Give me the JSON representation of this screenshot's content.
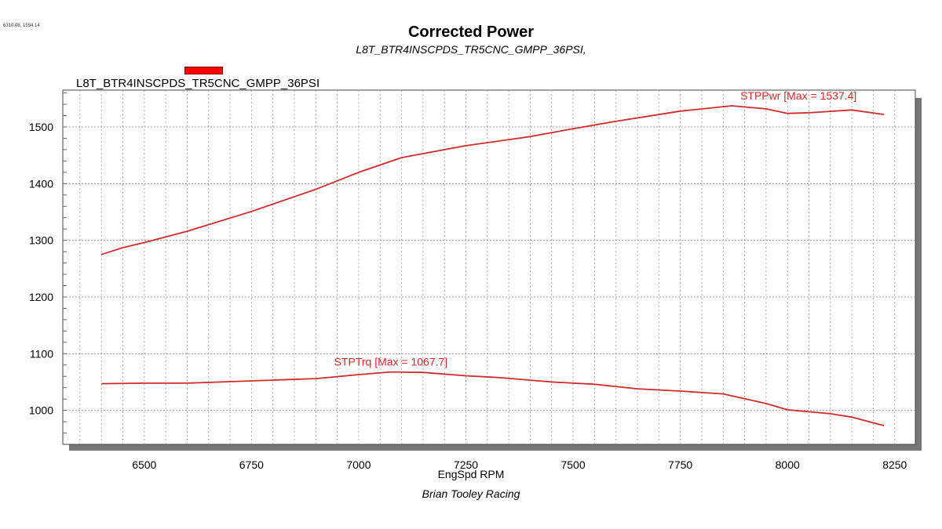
{
  "cursor_readout": "6310.08, 1554.14",
  "chart_data": {
    "type": "line",
    "title": "Corrected Power",
    "subtitle": "L8T_BTR4INSCPDS_TR5CNC_GMPP_36PSI,",
    "legend": [
      {
        "name": "L8T_BTR4INSCPDS_TR5CNC_GMPP_36PSI",
        "color": "#ff0000"
      }
    ],
    "legend_placement": "top-left",
    "xlabel": "EngSpd RPM",
    "ylabel": "",
    "footer": "Brian Tooley Racing",
    "xlim": [
      6310,
      8298
    ],
    "ylim": [
      940,
      1565
    ],
    "xticks": [
      6500,
      6750,
      7000,
      7250,
      7500,
      7750,
      8000,
      8250
    ],
    "yticks": [
      1000,
      1100,
      1200,
      1300,
      1400,
      1500
    ],
    "grid": true,
    "line_color": "#d42a2a",
    "series": [
      {
        "name": "STPPwr",
        "annotation": "STPPwr [Max = 1537.4]",
        "x": [
          6400,
          6450,
          6500,
          6600,
          6750,
          6900,
          7000,
          7100,
          7250,
          7400,
          7500,
          7600,
          7750,
          7870,
          7950,
          8000,
          8050,
          8150,
          8225
        ],
        "y": [
          1275,
          1287,
          1296,
          1316,
          1351,
          1390,
          1420,
          1446,
          1467,
          1483,
          1497,
          1510,
          1528,
          1537.4,
          1532,
          1524,
          1525,
          1530,
          1522
        ]
      },
      {
        "name": "STPTrq",
        "annotation": "STPTrq [Max = 1067.7]",
        "x": [
          6400,
          6500,
          6600,
          6750,
          6900,
          7000,
          7075,
          7150,
          7250,
          7325,
          7450,
          7550,
          7650,
          7750,
          7850,
          7950,
          8000,
          8100,
          8150,
          8225
        ],
        "y": [
          1047,
          1048,
          1048,
          1052,
          1056,
          1063,
          1067.7,
          1067,
          1061,
          1058,
          1050,
          1046,
          1038,
          1034,
          1029,
          1012,
          1001,
          994,
          988,
          973
        ]
      }
    ]
  }
}
